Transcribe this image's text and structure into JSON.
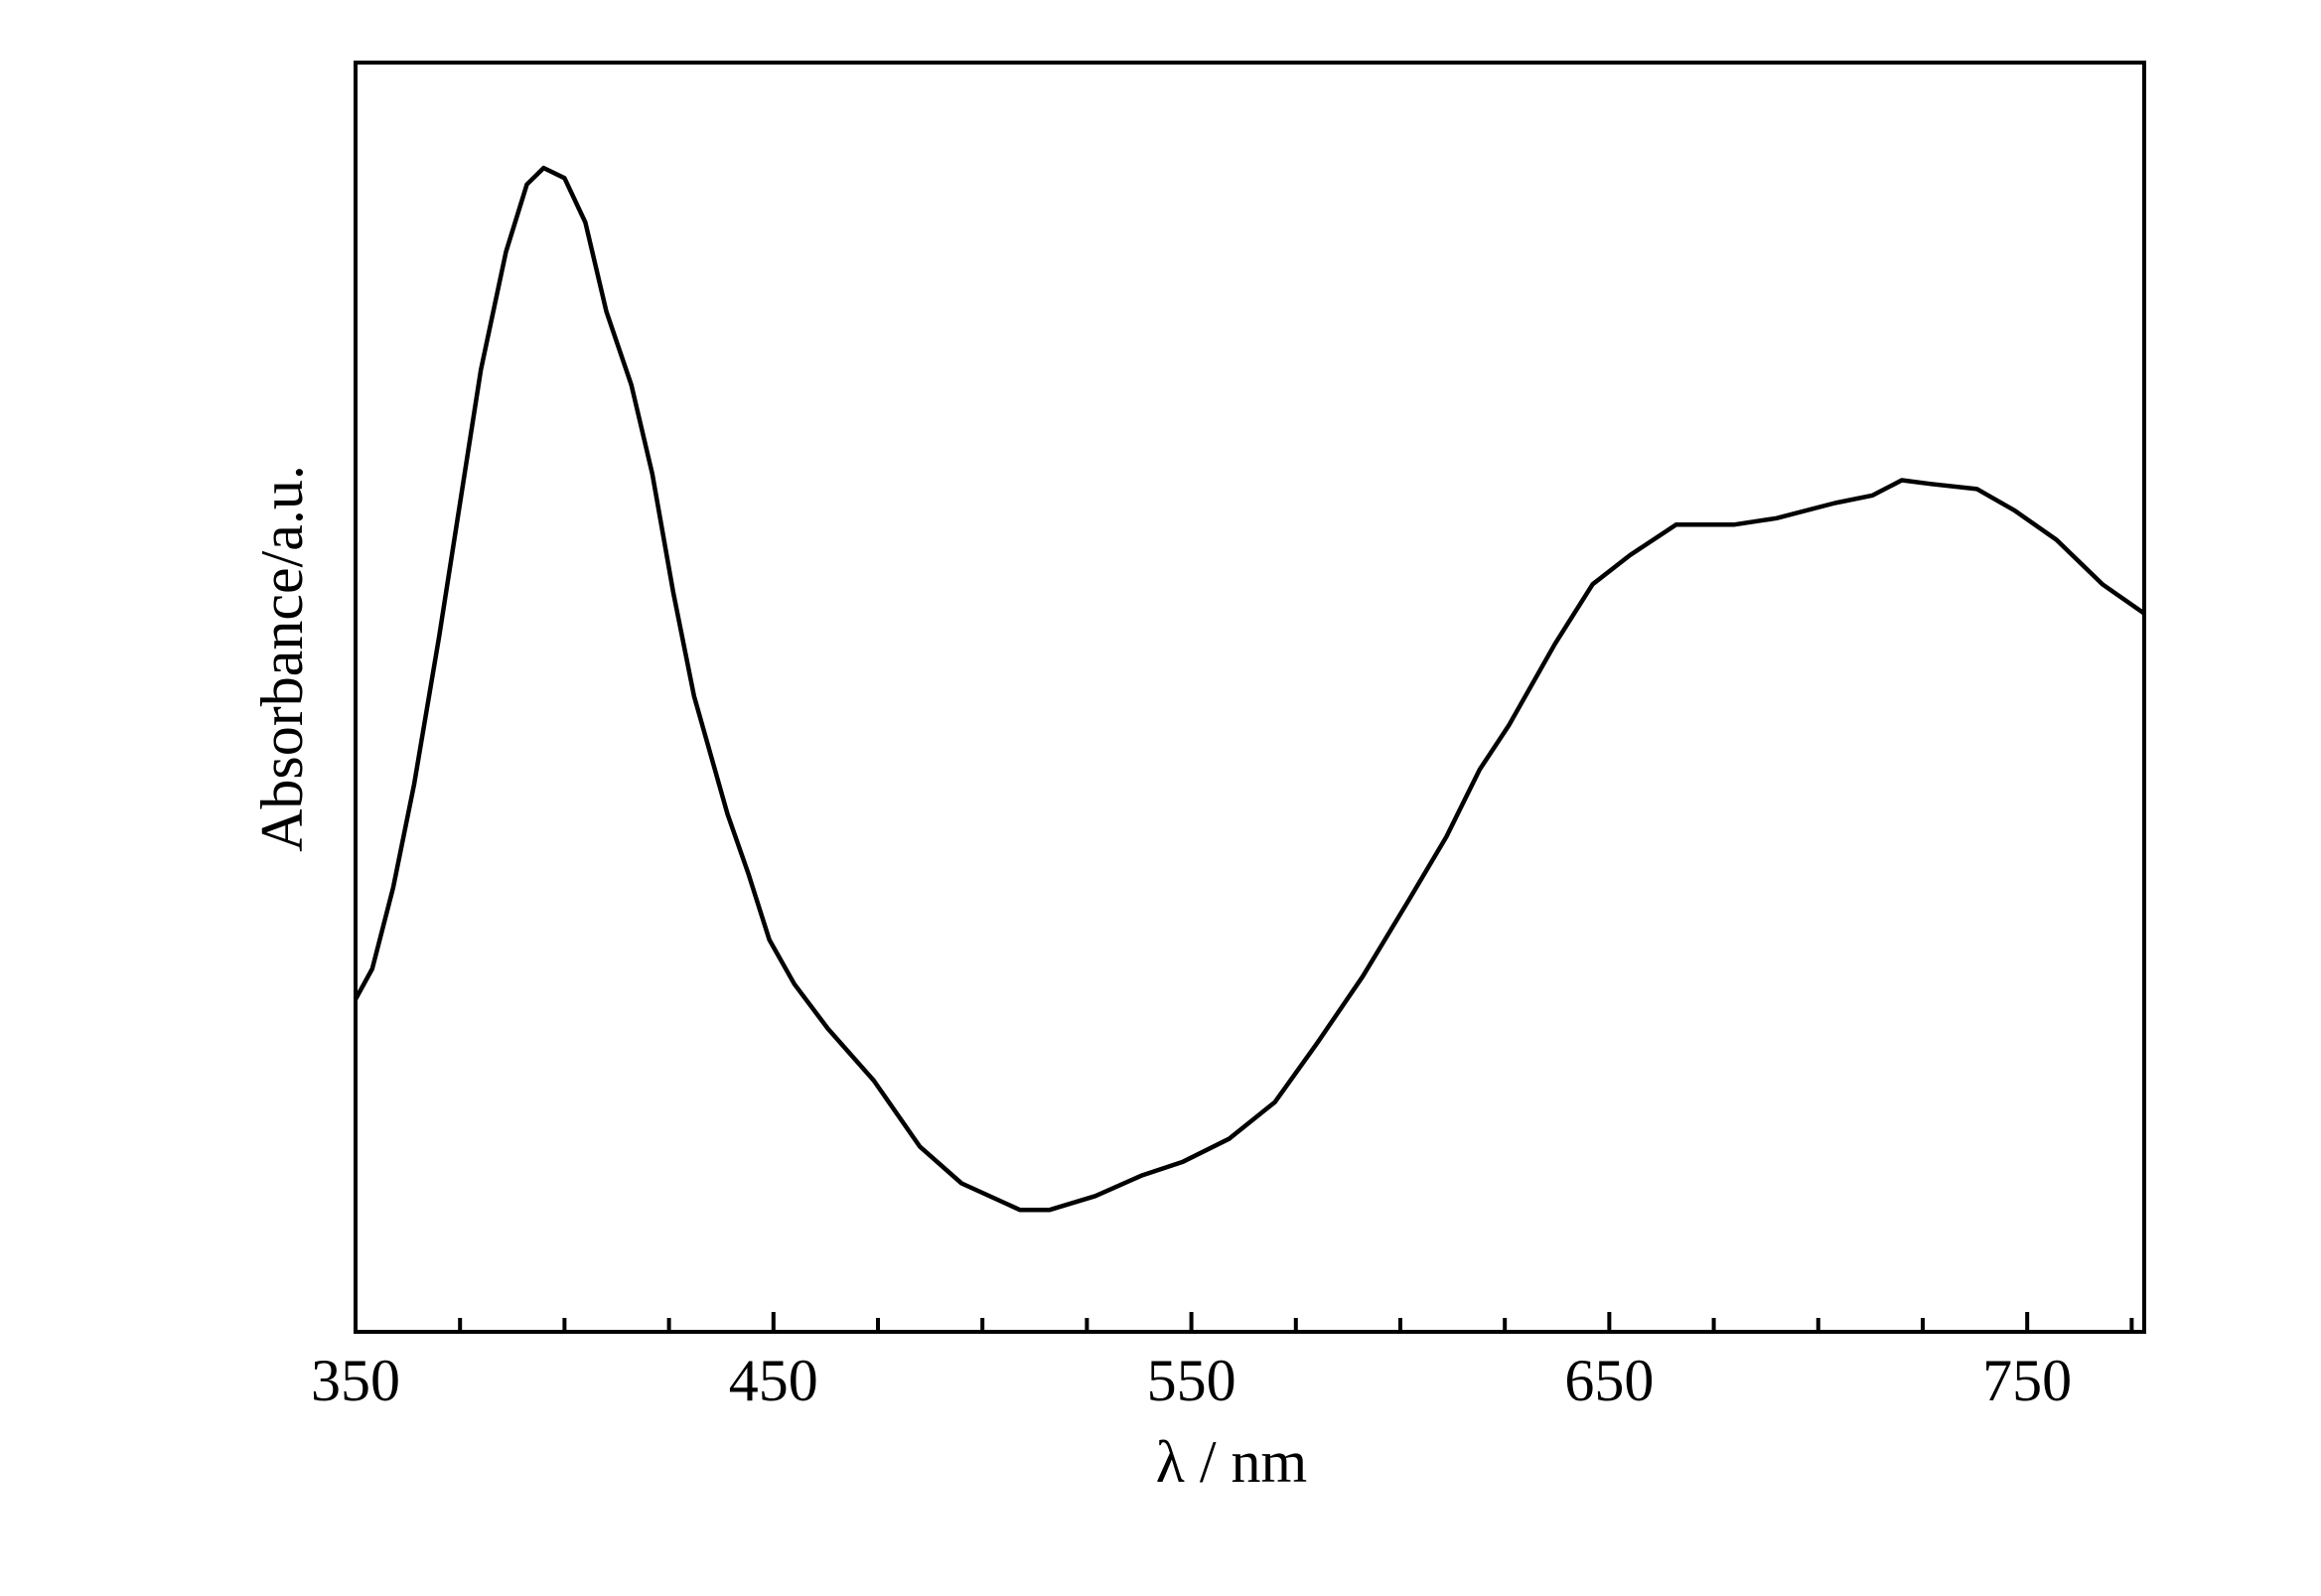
{
  "chart_data": {
    "type": "line",
    "x_label": "λ / nm",
    "y_label": "Absorbance/a.u.",
    "x": [
      350,
      354,
      359,
      364,
      370,
      375,
      380,
      386,
      391,
      395,
      400,
      405,
      410,
      416,
      421,
      426,
      431,
      439,
      444,
      449,
      455,
      463,
      474,
      485,
      495,
      509,
      516,
      527,
      538,
      548,
      559,
      570,
      580,
      591,
      602,
      611,
      619,
      626,
      637,
      646,
      655,
      666,
      680,
      690,
      704,
      713,
      720,
      727,
      738,
      747,
      757,
      768,
      778
    ],
    "series": [
      {
        "color": "#000000",
        "values": [
          0.262,
          0.286,
          0.35,
          0.431,
          0.548,
          0.653,
          0.758,
          0.851,
          0.904,
          0.917,
          0.909,
          0.874,
          0.804,
          0.746,
          0.676,
          0.583,
          0.501,
          0.408,
          0.361,
          0.309,
          0.274,
          0.239,
          0.198,
          0.146,
          0.117,
          0.096,
          0.096,
          0.107,
          0.123,
          0.134,
          0.152,
          0.181,
          0.227,
          0.28,
          0.34,
          0.39,
          0.443,
          0.478,
          0.542,
          0.589,
          0.612,
          0.636,
          0.636,
          0.641,
          0.653,
          0.659,
          0.671,
          0.668,
          0.664,
          0.647,
          0.624,
          0.589,
          0.566
        ]
      }
    ],
    "xlim": [
      350,
      778
    ],
    "ylim": [
      0,
      1
    ],
    "xticks": [
      350,
      450,
      550,
      650,
      750
    ],
    "xminor_ticks": [
      375,
      400,
      425,
      475,
      500,
      525,
      575,
      600,
      625,
      675,
      700,
      725,
      775
    ],
    "grid": false
  }
}
